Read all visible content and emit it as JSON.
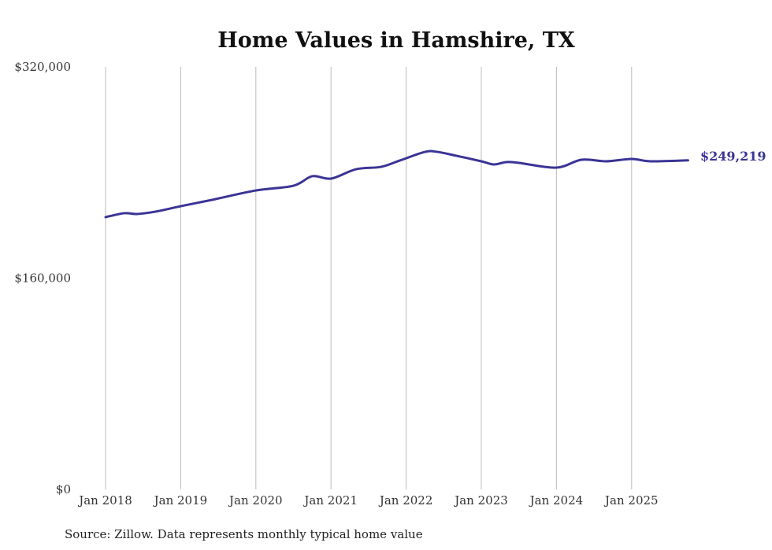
{
  "chart_data": {
    "type": "line",
    "title": "Home Values in Hamshire, TX",
    "xlabel": "",
    "ylabel": "",
    "ylim": [
      0,
      320000
    ],
    "yticks": [
      {
        "value": 0,
        "label": "$0"
      },
      {
        "value": 160000,
        "label": "$160,000"
      },
      {
        "value": 320000,
        "label": "$320,000"
      }
    ],
    "xticks": [
      {
        "month": 0,
        "label": "Jan 2018"
      },
      {
        "month": 12,
        "label": "Jan 2019"
      },
      {
        "month": 24,
        "label": "Jan 2020"
      },
      {
        "month": 36,
        "label": "Jan 2021"
      },
      {
        "month": 48,
        "label": "Jan 2022"
      },
      {
        "month": 60,
        "label": "Jan 2023"
      },
      {
        "month": 72,
        "label": "Jan 2024"
      },
      {
        "month": 84,
        "label": "Jan 2025"
      }
    ],
    "xlim_months": [
      0,
      93
    ],
    "grid": "vertical",
    "series": [
      {
        "name": "Typical home value",
        "color": "#3a3496",
        "points": [
          {
            "month": 0,
            "value": 206200
          },
          {
            "month": 3,
            "value": 209200
          },
          {
            "month": 5,
            "value": 208600
          },
          {
            "month": 8,
            "value": 210400
          },
          {
            "month": 12,
            "value": 214500
          },
          {
            "month": 17,
            "value": 219300
          },
          {
            "month": 24,
            "value": 226400
          },
          {
            "month": 30,
            "value": 230000
          },
          {
            "month": 33,
            "value": 237200
          },
          {
            "month": 36,
            "value": 235400
          },
          {
            "month": 40,
            "value": 242500
          },
          {
            "month": 44,
            "value": 244300
          },
          {
            "month": 47,
            "value": 249100
          },
          {
            "month": 51,
            "value": 255600
          },
          {
            "month": 53,
            "value": 255600
          },
          {
            "month": 56,
            "value": 252700
          },
          {
            "month": 60,
            "value": 248500
          },
          {
            "month": 62,
            "value": 246100
          },
          {
            "month": 64,
            "value": 247900
          },
          {
            "month": 66,
            "value": 247300
          },
          {
            "month": 72,
            "value": 243700
          },
          {
            "month": 76,
            "value": 249700
          },
          {
            "month": 80,
            "value": 248500
          },
          {
            "month": 84,
            "value": 250300
          },
          {
            "month": 87,
            "value": 248500
          },
          {
            "month": 93,
            "value": 249219
          }
        ]
      }
    ],
    "end_label": "$249,219",
    "source": "Source: Zillow. Data represents monthly typical home value"
  }
}
